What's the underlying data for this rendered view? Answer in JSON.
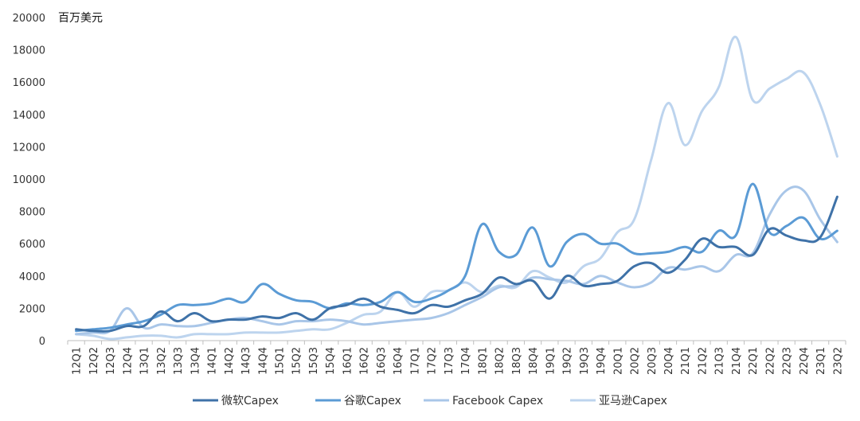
{
  "chart_data": {
    "type": "line",
    "unit_label": "百万美元",
    "yticks": [
      0,
      2000,
      4000,
      6000,
      8000,
      10000,
      12000,
      14000,
      16000,
      18000,
      20000
    ],
    "ylim": [
      0,
      20000
    ],
    "grid": false,
    "legend_position": "bottom",
    "categories": [
      "12Q1",
      "12Q2",
      "12Q3",
      "12Q4",
      "13Q1",
      "13Q2",
      "13Q3",
      "13Q4",
      "14Q1",
      "14Q2",
      "14Q3",
      "14Q4",
      "15Q1",
      "15Q2",
      "15Q3",
      "15Q4",
      "16Q1",
      "16Q2",
      "16Q3",
      "16Q4",
      "17Q1",
      "17Q2",
      "17Q3",
      "17Q4",
      "18Q1",
      "18Q2",
      "18Q3",
      "18Q4",
      "19Q1",
      "19Q2",
      "19Q3",
      "19Q4",
      "20Q1",
      "20Q2",
      "20Q3",
      "20Q4",
      "21Q1",
      "21Q2",
      "21Q3",
      "21Q4",
      "22Q1",
      "22Q2",
      "22Q3",
      "22Q4",
      "23Q1",
      "23Q2"
    ],
    "series": [
      {
        "name": "微软Capex",
        "color": "#3f72a8",
        "values": [
          700,
          600,
          600,
          900,
          900,
          1800,
          1200,
          1700,
          1200,
          1300,
          1300,
          1500,
          1400,
          1700,
          1300,
          2000,
          2200,
          2600,
          2100,
          1900,
          1700,
          2200,
          2100,
          2500,
          2900,
          3900,
          3500,
          3700,
          2600,
          4000,
          3400,
          3500,
          3700,
          4600,
          4800,
          4200,
          5000,
          6300,
          5800,
          5800,
          5300,
          6900,
          6500,
          6200,
          6400,
          8900
        ]
      },
      {
        "name": "谷歌Capex",
        "color": "#5b9bd5",
        "values": [
          600,
          700,
          800,
          1000,
          1200,
          1600,
          2200,
          2200,
          2300,
          2600,
          2400,
          3500,
          2900,
          2500,
          2400,
          2000,
          2300,
          2200,
          2400,
          3000,
          2400,
          2600,
          3100,
          4000,
          7200,
          5500,
          5300,
          7000,
          4600,
          6100,
          6600,
          6000,
          6000,
          5400,
          5400,
          5500,
          5800,
          5500,
          6800,
          6500,
          9700,
          6700,
          7100,
          7600,
          6300,
          6800
        ]
      },
      {
        "name": "Facebook Capex",
        "color": "#a9c6e8",
        "values": [
          400,
          500,
          600,
          2000,
          800,
          1000,
          900,
          900,
          1100,
          1300,
          1400,
          1200,
          1000,
          1200,
          1200,
          1300,
          1200,
          1000,
          1100,
          1200,
          1300,
          1400,
          1700,
          2200,
          2700,
          3300,
          3400,
          3900,
          3800,
          3700,
          3500,
          4000,
          3600,
          3300,
          3600,
          4500,
          4400,
          4600,
          4300,
          5300,
          5400,
          7800,
          9300,
          9300,
          7500,
          6100
        ]
      },
      {
        "name": "亚马逊Capex",
        "color": "#bdd4ee",
        "values": [
          400,
          300,
          100,
          200,
          300,
          300,
          200,
          400,
          400,
          400,
          500,
          500,
          500,
          600,
          700,
          700,
          1100,
          1600,
          1800,
          3000,
          2100,
          3000,
          3100,
          3600,
          3000,
          3400,
          3300,
          4300,
          3900,
          3600,
          4600,
          5100,
          6700,
          7500,
          11200,
          14700,
          12100,
          14200,
          15700,
          18800,
          14900,
          15600,
          16200,
          16600,
          14600,
          11400
        ]
      }
    ]
  }
}
